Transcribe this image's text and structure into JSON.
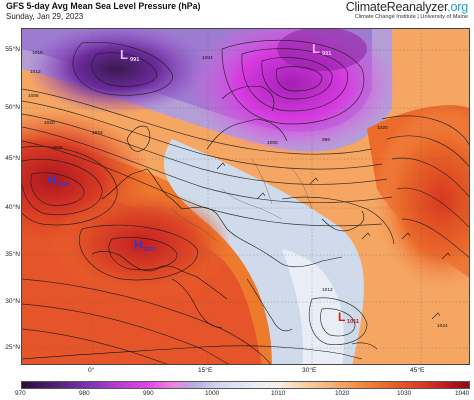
{
  "header": {
    "title": "GFS 5-day Avg Mean Sea Level Pressure (hPa)",
    "subtitle": "Sunday, Jan 29, 2023",
    "brand_main": "ClimateReanalyzer",
    "brand_tld": ".org",
    "brand_sub": "Climate Change Institute | University of Maine"
  },
  "map": {
    "lat_labels": [
      "55°N",
      "50°N",
      "45°N",
      "40°N",
      "35°N",
      "30°N",
      "25°N"
    ],
    "lon_labels": [
      "0°",
      "15°E",
      "30°E",
      "45°E"
    ],
    "pressure_centers": [
      {
        "type": "L",
        "value": "991"
      },
      {
        "type": "L",
        "value": "991"
      },
      {
        "type": "H",
        "value": "1034"
      },
      {
        "type": "H",
        "value": "1032"
      },
      {
        "type": "L",
        "value": "1011"
      }
    ],
    "isobar_labels": [
      "1016",
      "1012",
      "1008",
      "1020",
      "1028",
      "1024",
      "1004",
      "1000",
      "996",
      "1020",
      "1024",
      "1012"
    ]
  },
  "colorbar": {
    "ticks": [
      "970",
      "980",
      "990",
      "1000",
      "1010",
      "1020",
      "1030",
      "1040"
    ],
    "colors": {
      "low": "#3b1a4f",
      "mid_low": "#e243e8",
      "neutral": "#e7eef7",
      "mid_high": "#f07c2a",
      "high": "#b0141c"
    }
  }
}
